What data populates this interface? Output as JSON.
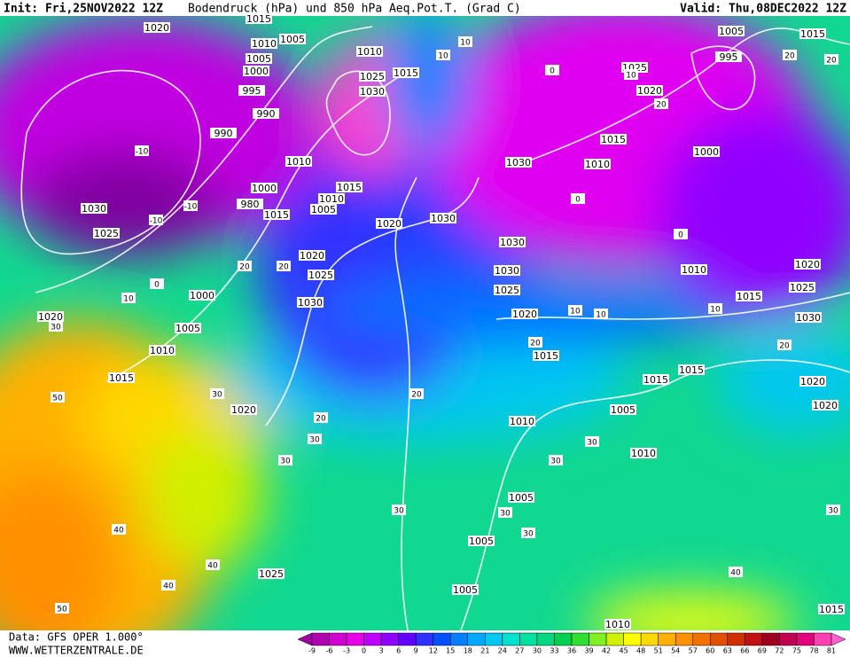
{
  "header": {
    "init": "Init: Fri,25NOV2022 12Z",
    "title": "Bodendruck (hPa) und 850 hPa Aeq.Pot.T. (Grad C)",
    "valid": "Valid: Thu,08DEC2022 12Z"
  },
  "footer": {
    "data": "Data: GFS OPER 1.000°",
    "site": "WWW.WETTERZENTRALE.DE"
  },
  "colorbar": {
    "ticks": [
      -9,
      -6,
      -3,
      0,
      3,
      6,
      9,
      12,
      15,
      18,
      21,
      24,
      27,
      30,
      33,
      36,
      39,
      42,
      45,
      48,
      51,
      54,
      57,
      60,
      63,
      66,
      69,
      72,
      75,
      78,
      81
    ],
    "colors": [
      "#a000a0",
      "#b000b0",
      "#d000d0",
      "#e800e8",
      "#c000ff",
      "#9000ff",
      "#6000ff",
      "#3030ff",
      "#0050ff",
      "#0080ff",
      "#00a8ff",
      "#00c8f0",
      "#00e0d0",
      "#00e0a0",
      "#00d880",
      "#00d050",
      "#30e030",
      "#80f020",
      "#d0f000",
      "#ffff00",
      "#ffd800",
      "#ffb000",
      "#ff9000",
      "#f07000",
      "#e05000",
      "#d03000",
      "#c01010",
      "#a00020",
      "#c00050",
      "#e00080",
      "#ff40b0",
      "#ff60d0"
    ]
  },
  "pressure_labels": [
    1020,
    1015,
    1010,
    1005,
    1010,
    1015,
    1025,
    1030,
    1005,
    1000,
    995,
    990,
    990,
    1010,
    1000,
    980,
    1015,
    1005,
    1010,
    1015,
    1020,
    1030,
    1030,
    1025,
    1020,
    1025,
    1030,
    1000,
    1005,
    1010,
    1015,
    1020,
    1020,
    1025,
    1005,
    1005,
    1005,
    1010,
    1010,
    1005,
    1010,
    1015,
    1020,
    1015,
    1015,
    1025,
    1030,
    1030,
    1030,
    1010,
    1015,
    1020,
    1025,
    1005,
    995,
    1015,
    1000,
    1010,
    1015,
    1020,
    1025,
    1030,
    1020,
    1020,
    1015
  ],
  "temperature_labels": [
    -10,
    -10,
    -10,
    0,
    10,
    10,
    10,
    20,
    20,
    30,
    30,
    50,
    40,
    40,
    40,
    50,
    30,
    20,
    30,
    20,
    30,
    30,
    30,
    30,
    30,
    40,
    30,
    20,
    10,
    10,
    10,
    0,
    0,
    20,
    20,
    20,
    20,
    10,
    0
  ]
}
